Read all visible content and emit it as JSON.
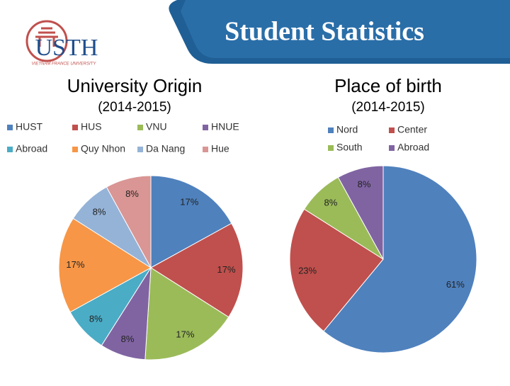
{
  "slide": {
    "title": "Student Statistics",
    "logo": "USTH",
    "logo_subtitle": "VIETNAM FRANCE UNIVERSITY"
  },
  "chart_data": [
    {
      "type": "pie",
      "title": "University Origin",
      "subtitle": "(2014-2015)",
      "categories": [
        "HUST",
        "HUS",
        "VNU",
        "HNUE",
        "Abroad",
        "Quy Nhon",
        "Da Nang",
        "Hue"
      ],
      "values": [
        17,
        17,
        17,
        8,
        8,
        17,
        8,
        8
      ],
      "value_labels": [
        "17%",
        "17%",
        "17%",
        "8%",
        "8%",
        "17%",
        "8%",
        "8%"
      ],
      "colors": [
        "#4f81bd",
        "#c0504d",
        "#9bbb59",
        "#8064a2",
        "#4bacc6",
        "#f79646",
        "#95b3d7",
        "#d99694"
      ],
      "legend": "top"
    },
    {
      "type": "pie",
      "title": "Place of birth",
      "subtitle": "(2014-2015)",
      "categories": [
        "Nord",
        "Center",
        "South",
        "Abroad"
      ],
      "values": [
        61,
        23,
        8,
        8
      ],
      "value_labels": [
        "61%",
        "23%",
        "8%",
        "8%"
      ],
      "colors": [
        "#4f81bd",
        "#c0504d",
        "#9bbb59",
        "#8064a2"
      ],
      "legend": "top"
    }
  ]
}
